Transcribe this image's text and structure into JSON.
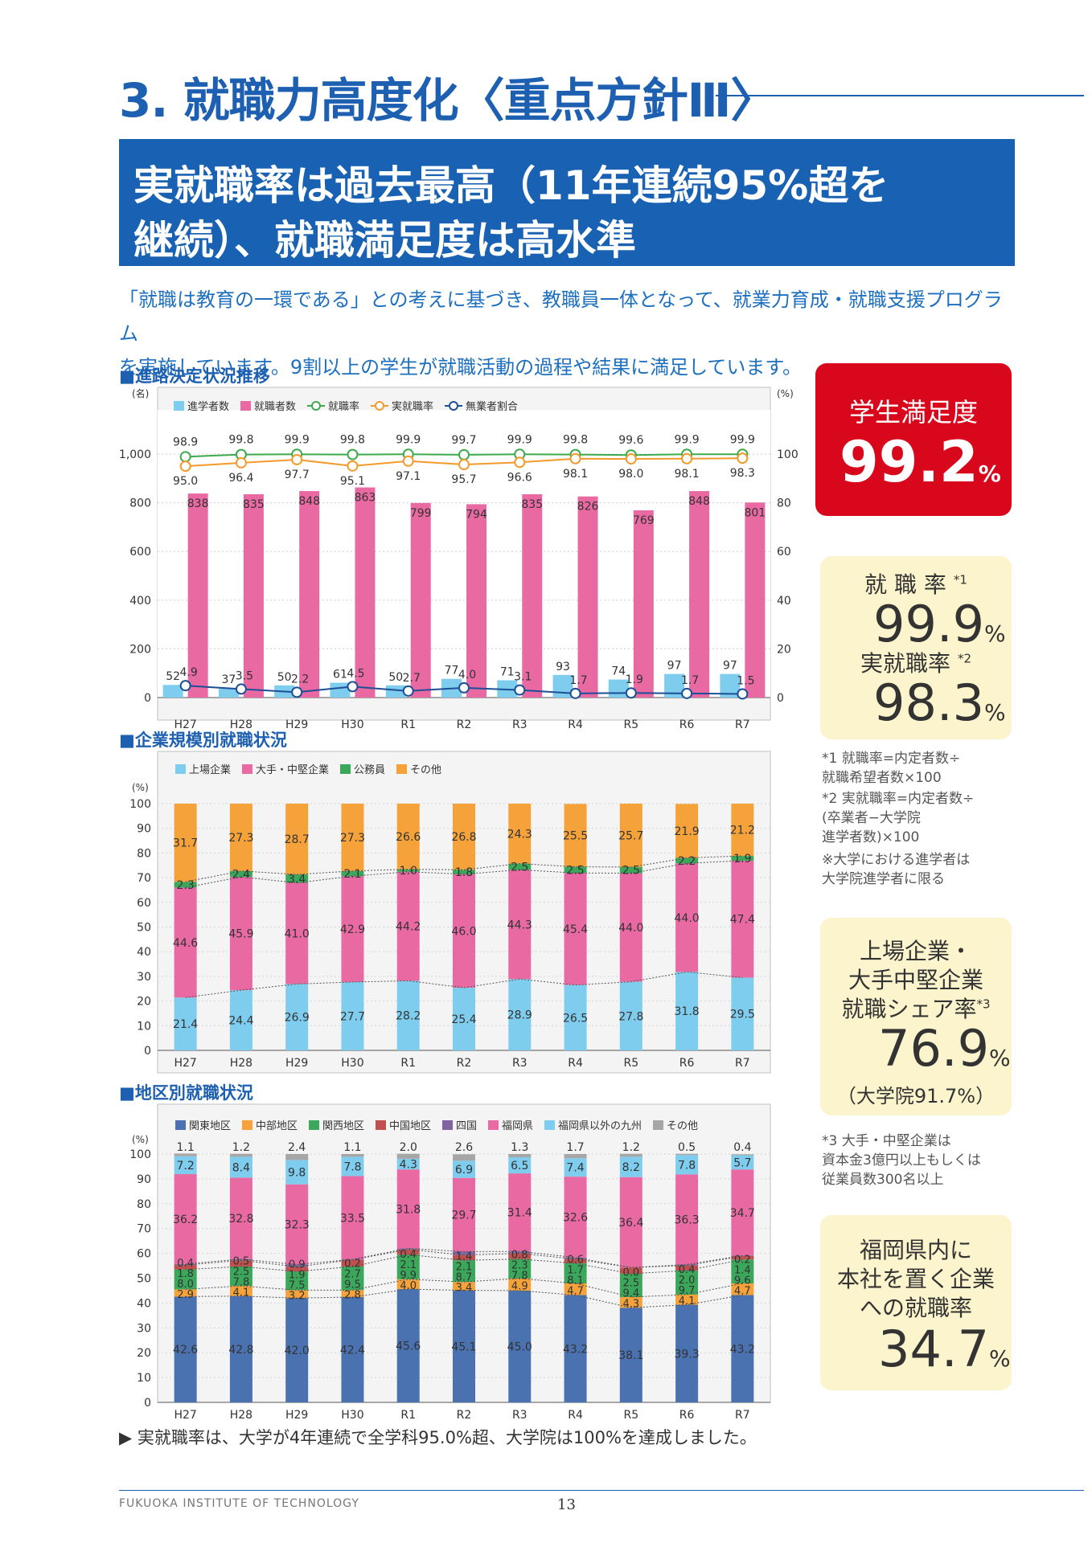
{
  "header": {
    "section_title": "3. 就職力高度化〈重点方針Ⅲ〉",
    "banner_line1": "実就職率は過去最高（11年連続95%超を",
    "banner_line2": "継続）、就職満足度は高水準",
    "intro_line1": "「就職は教育の一環である」との考えに基づき、教職員一体となって、就業力育成・就職支援プログラム",
    "intro_line2": "を実施しています。9割以上の学生が就職活動の過程や結果に満足しています。"
  },
  "cards": {
    "satisfaction_label": "学生満足度",
    "satisfaction_value": "99.2",
    "employment_label": "就 職 率",
    "employment_mark": "*1",
    "employment_value": "99.9",
    "actual_label": "実就職率",
    "actual_mark": "*2",
    "actual_value": "98.3",
    "share_label1": "上場企業・",
    "share_label2": "大手中堅企業",
    "share_label3": "就職シェア率",
    "share_mark": "*3",
    "share_value": "76.9",
    "share_sub": "（大学院91.7%）",
    "fukuoka_label1": "福岡県内に",
    "fukuoka_label2": "本社を置く企業",
    "fukuoka_label3": "への就職率",
    "fukuoka_value": "34.7",
    "percent_unit": "%"
  },
  "notes": {
    "n1_l1": "*1  就職率=内定者数÷",
    "n1_l2": "      就職希望者数×100",
    "n2_l1": "*2  実就職率=内定者数÷",
    "n2_l2": "      (卒業者−大学院",
    "n2_l3": "      進学者数)×100",
    "n3_l1": "※大学における進学者は",
    "n3_l2": "   大学院進学者に限る",
    "n4_l1": "*3  大手・中堅企業は",
    "n4_l2": "      資本金3億円以上もしくは",
    "n4_l3": "      従業員数300名以上"
  },
  "bottom_note": "▶ 実就職率は、大学が4年連続で全学科95.0%超、大学院は100%を達成しました。",
  "footer": {
    "org": "FUKUOKA INSTITUTE OF TECHNOLOGY",
    "page": "13"
  },
  "chart_data": [
    {
      "type": "bar",
      "title": "■進路決定状況推移",
      "left_unit": "(名)",
      "right_unit": "(%)",
      "categories": [
        "H27",
        "H28",
        "H29",
        "H30",
        "R1",
        "R2",
        "R3",
        "R4",
        "R5",
        "R6",
        "R7"
      ],
      "left_ylim": [
        0,
        1000
      ],
      "left_ticks": [
        "0",
        "200",
        "400",
        "600",
        "800",
        "1,000"
      ],
      "right_ylim": [
        0,
        100
      ],
      "right_ticks": [
        "0",
        "20",
        "40",
        "60",
        "80",
        "100"
      ],
      "grid": true,
      "legend_position": "top-left",
      "series": [
        {
          "name": "進学者数",
          "kind": "bar",
          "axis": "left",
          "color": "#7fcdee",
          "values": [
            52,
            37,
            50,
            61,
            50,
            77,
            71,
            93,
            74,
            97,
            97
          ]
        },
        {
          "name": "就職者数",
          "kind": "bar",
          "axis": "left",
          "color": "#e96aa3",
          "values": [
            838,
            835,
            848,
            863,
            799,
            794,
            835,
            826,
            769,
            848,
            801
          ]
        },
        {
          "name": "就職率",
          "kind": "line",
          "axis": "right",
          "color": "#3daa4d",
          "values": [
            98.9,
            99.8,
            99.9,
            99.8,
            99.9,
            99.7,
            99.9,
            99.8,
            99.6,
            99.9,
            99.9
          ]
        },
        {
          "name": "実就職率",
          "kind": "line",
          "axis": "right",
          "color": "#f39a2b",
          "values": [
            95.0,
            96.4,
            97.7,
            95.1,
            97.1,
            95.7,
            96.6,
            98.1,
            98.0,
            98.1,
            98.3
          ]
        },
        {
          "name": "無業者割合",
          "kind": "line",
          "axis": "right",
          "color": "#1d4f96",
          "values": [
            4.9,
            3.5,
            2.2,
            4.5,
            2.7,
            4.0,
            3.1,
            1.7,
            1.9,
            1.7,
            1.5
          ]
        }
      ]
    },
    {
      "type": "bar",
      "stacked": true,
      "title": "■企業規模別就職状況",
      "y_unit": "(%)",
      "categories": [
        "H27",
        "H28",
        "H29",
        "H30",
        "R1",
        "R2",
        "R3",
        "R4",
        "R5",
        "R6",
        "R7"
      ],
      "ylim": [
        0,
        100
      ],
      "y_ticks": [
        "0",
        "10",
        "20",
        "30",
        "40",
        "50",
        "60",
        "70",
        "80",
        "90",
        "100"
      ],
      "grid": true,
      "legend_position": "top-left",
      "series": [
        {
          "name": "上場企業",
          "color": "#7fcdee",
          "values": [
            21.4,
            24.4,
            26.9,
            27.7,
            28.2,
            25.4,
            28.9,
            26.5,
            27.8,
            31.8,
            29.5
          ]
        },
        {
          "name": "大手・中堅企業",
          "color": "#e96aa3",
          "values": [
            44.6,
            45.9,
            41.0,
            42.9,
            44.2,
            46.0,
            44.3,
            45.4,
            44.0,
            44.0,
            47.4
          ]
        },
        {
          "name": "公務員",
          "color": "#3aa75b",
          "values": [
            2.3,
            2.4,
            3.4,
            2.1,
            1.0,
            1.8,
            2.5,
            2.5,
            2.5,
            2.2,
            1.9
          ]
        },
        {
          "name": "その他",
          "color": "#f5a23a",
          "values": [
            31.7,
            27.3,
            28.7,
            27.3,
            26.6,
            26.8,
            24.3,
            25.5,
            25.7,
            21.9,
            21.2
          ]
        }
      ]
    },
    {
      "type": "bar",
      "stacked": true,
      "title": "■地区別就職状況",
      "y_unit": "(%)",
      "categories": [
        "H27",
        "H28",
        "H29",
        "H30",
        "R1",
        "R2",
        "R3",
        "R4",
        "R5",
        "R6",
        "R7"
      ],
      "ylim": [
        0,
        100
      ],
      "y_ticks": [
        "0",
        "10",
        "20",
        "30",
        "40",
        "50",
        "60",
        "70",
        "80",
        "90",
        "100"
      ],
      "grid": true,
      "legend_position": "top-left",
      "series": [
        {
          "name": "関東地区",
          "color": "#4a72b0",
          "values": [
            42.6,
            42.8,
            42.0,
            42.4,
            45.6,
            45.1,
            45.0,
            43.2,
            38.1,
            39.3,
            43.2
          ]
        },
        {
          "name": "中部地区",
          "color": "#f5a23a",
          "values": [
            2.9,
            4.1,
            3.2,
            2.8,
            4.0,
            3.4,
            4.9,
            4.7,
            4.3,
            4.1,
            4.7
          ]
        },
        {
          "name": "関西地区",
          "color": "#3aa75b",
          "values": [
            8.0,
            7.8,
            7.5,
            9.5,
            9.9,
            8.7,
            7.8,
            8.1,
            9.4,
            9.7,
            9.6
          ]
        },
        {
          "name": "中国地区",
          "color": "#c0504d",
          "values": [
            1.8,
            2.5,
            1.9,
            2.7,
            2.1,
            2.1,
            2.3,
            1.7,
            2.5,
            2.0,
            1.4
          ]
        },
        {
          "name": "四国",
          "color": "#8064a2",
          "values": [
            0.4,
            0.5,
            0.9,
            0.2,
            0.4,
            1.4,
            0.8,
            0.6,
            0.0,
            0.4,
            0.2
          ]
        },
        {
          "name": "福岡県",
          "color": "#e96aa3",
          "values": [
            36.2,
            32.8,
            32.3,
            33.5,
            31.8,
            29.7,
            31.4,
            32.6,
            36.4,
            36.3,
            34.7
          ]
        },
        {
          "name": "福岡県以外の九州",
          "color": "#7fcdee",
          "values": [
            7.2,
            8.4,
            9.8,
            7.8,
            4.3,
            6.9,
            6.5,
            7.4,
            8.2,
            7.8,
            5.7
          ]
        },
        {
          "name": "その他",
          "color": "#a6a6a6",
          "values": [
            1.1,
            1.2,
            2.4,
            1.1,
            2.0,
            2.6,
            1.3,
            1.7,
            1.2,
            0.5,
            0.4
          ]
        }
      ]
    }
  ]
}
